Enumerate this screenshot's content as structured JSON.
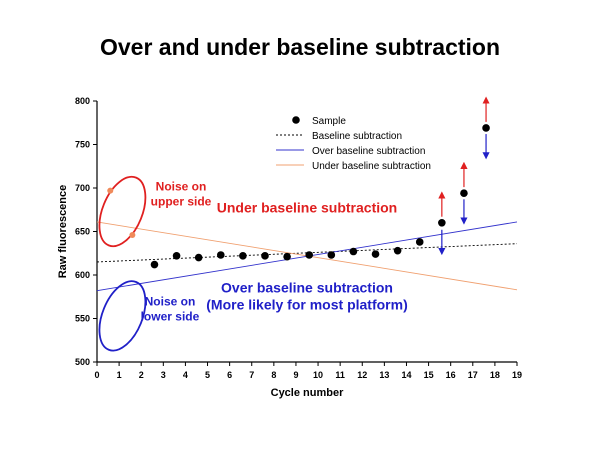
{
  "chart_data": {
    "type": "scatter",
    "title": "Over and under baseline subtraction",
    "xlabel": "Cycle number",
    "ylabel": "Raw fluorescence",
    "xlim": [
      0,
      19
    ],
    "ylim": [
      500,
      800
    ],
    "xticks": [
      0,
      1,
      2,
      3,
      4,
      5,
      6,
      7,
      8,
      9,
      10,
      11,
      12,
      13,
      14,
      15,
      16,
      17,
      18,
      19
    ],
    "yticks": [
      500,
      550,
      600,
      650,
      700,
      750,
      800
    ],
    "grid": false,
    "legend_position": "top-center",
    "legend": [
      {
        "label": "Sample",
        "kind": "marker",
        "color": "#000000"
      },
      {
        "label": "Baseline subtraction",
        "kind": "dotted-line",
        "color": "#000000"
      },
      {
        "label": "Over baseline subtraction",
        "kind": "line",
        "color": "#3333cc"
      },
      {
        "label": "Under baseline subtraction",
        "kind": "line",
        "color": "#f0a070"
      }
    ],
    "sample": {
      "x": [
        2.6,
        3.6,
        4.6,
        5.6,
        6.6,
        7.6,
        8.6,
        9.6,
        10.6,
        11.6,
        12.6,
        13.6,
        14.6,
        15.6,
        16.6,
        17.6
      ],
      "y": [
        612,
        622,
        620,
        623,
        622,
        622,
        621,
        623,
        623,
        627,
        624,
        628,
        638,
        660,
        694,
        769
      ]
    },
    "noise_points": {
      "x": [
        0.6,
        1.6
      ],
      "y": [
        697,
        646
      ],
      "color": "#f08a5a"
    },
    "lines": [
      {
        "name": "Baseline subtraction",
        "x": [
          0,
          19
        ],
        "y": [
          615,
          636
        ],
        "color": "#000000",
        "style": "dotted"
      },
      {
        "name": "Over baseline subtraction",
        "x": [
          0,
          19
        ],
        "y": [
          582,
          661
        ],
        "color": "#3333cc",
        "style": "solid"
      },
      {
        "name": "Under baseline subtraction",
        "x": [
          0,
          19
        ],
        "y": [
          661,
          583
        ],
        "color": "#f0a070",
        "style": "solid"
      }
    ],
    "ellipses": [
      {
        "cx": 1.15,
        "cy": 673,
        "rx": 0.9,
        "ry": 42,
        "color": "#e02020"
      },
      {
        "cx": 1.15,
        "cy": 553,
        "rx": 0.9,
        "ry": 42,
        "color": "#2020c8"
      }
    ],
    "arrows": [
      {
        "x": 15.6,
        "y_from": 667,
        "y_to": 692,
        "color": "#e02020"
      },
      {
        "x": 15.6,
        "y_from": 652,
        "y_to": 627,
        "color": "#2020c8"
      },
      {
        "x": 16.6,
        "y_from": 701,
        "y_to": 726,
        "color": "#e02020"
      },
      {
        "x": 16.6,
        "y_from": 687,
        "y_to": 662,
        "color": "#2020c8"
      },
      {
        "x": 17.6,
        "y_from": 776,
        "y_to": 801,
        "color": "#e02020"
      },
      {
        "x": 17.6,
        "y_from": 762,
        "y_to": 737,
        "color": "#2020c8"
      }
    ],
    "annotations": [
      {
        "lines": [
          "Noise on",
          "upper side"
        ],
        "x": 3.8,
        "y": 697,
        "color": "#e02020",
        "size": 12
      },
      {
        "lines": [
          "Under baseline subtraction"
        ],
        "x": 9.5,
        "y": 672,
        "color": "#e02020",
        "size": 14
      },
      {
        "lines": [
          "Noise on",
          "lower side"
        ],
        "x": 3.3,
        "y": 565,
        "color": "#2020c8",
        "size": 12
      },
      {
        "lines": [
          "Over baseline subtraction",
          "(More likely for most platform)"
        ],
        "x": 9.5,
        "y": 580,
        "color": "#2020c8",
        "size": 14
      }
    ]
  }
}
